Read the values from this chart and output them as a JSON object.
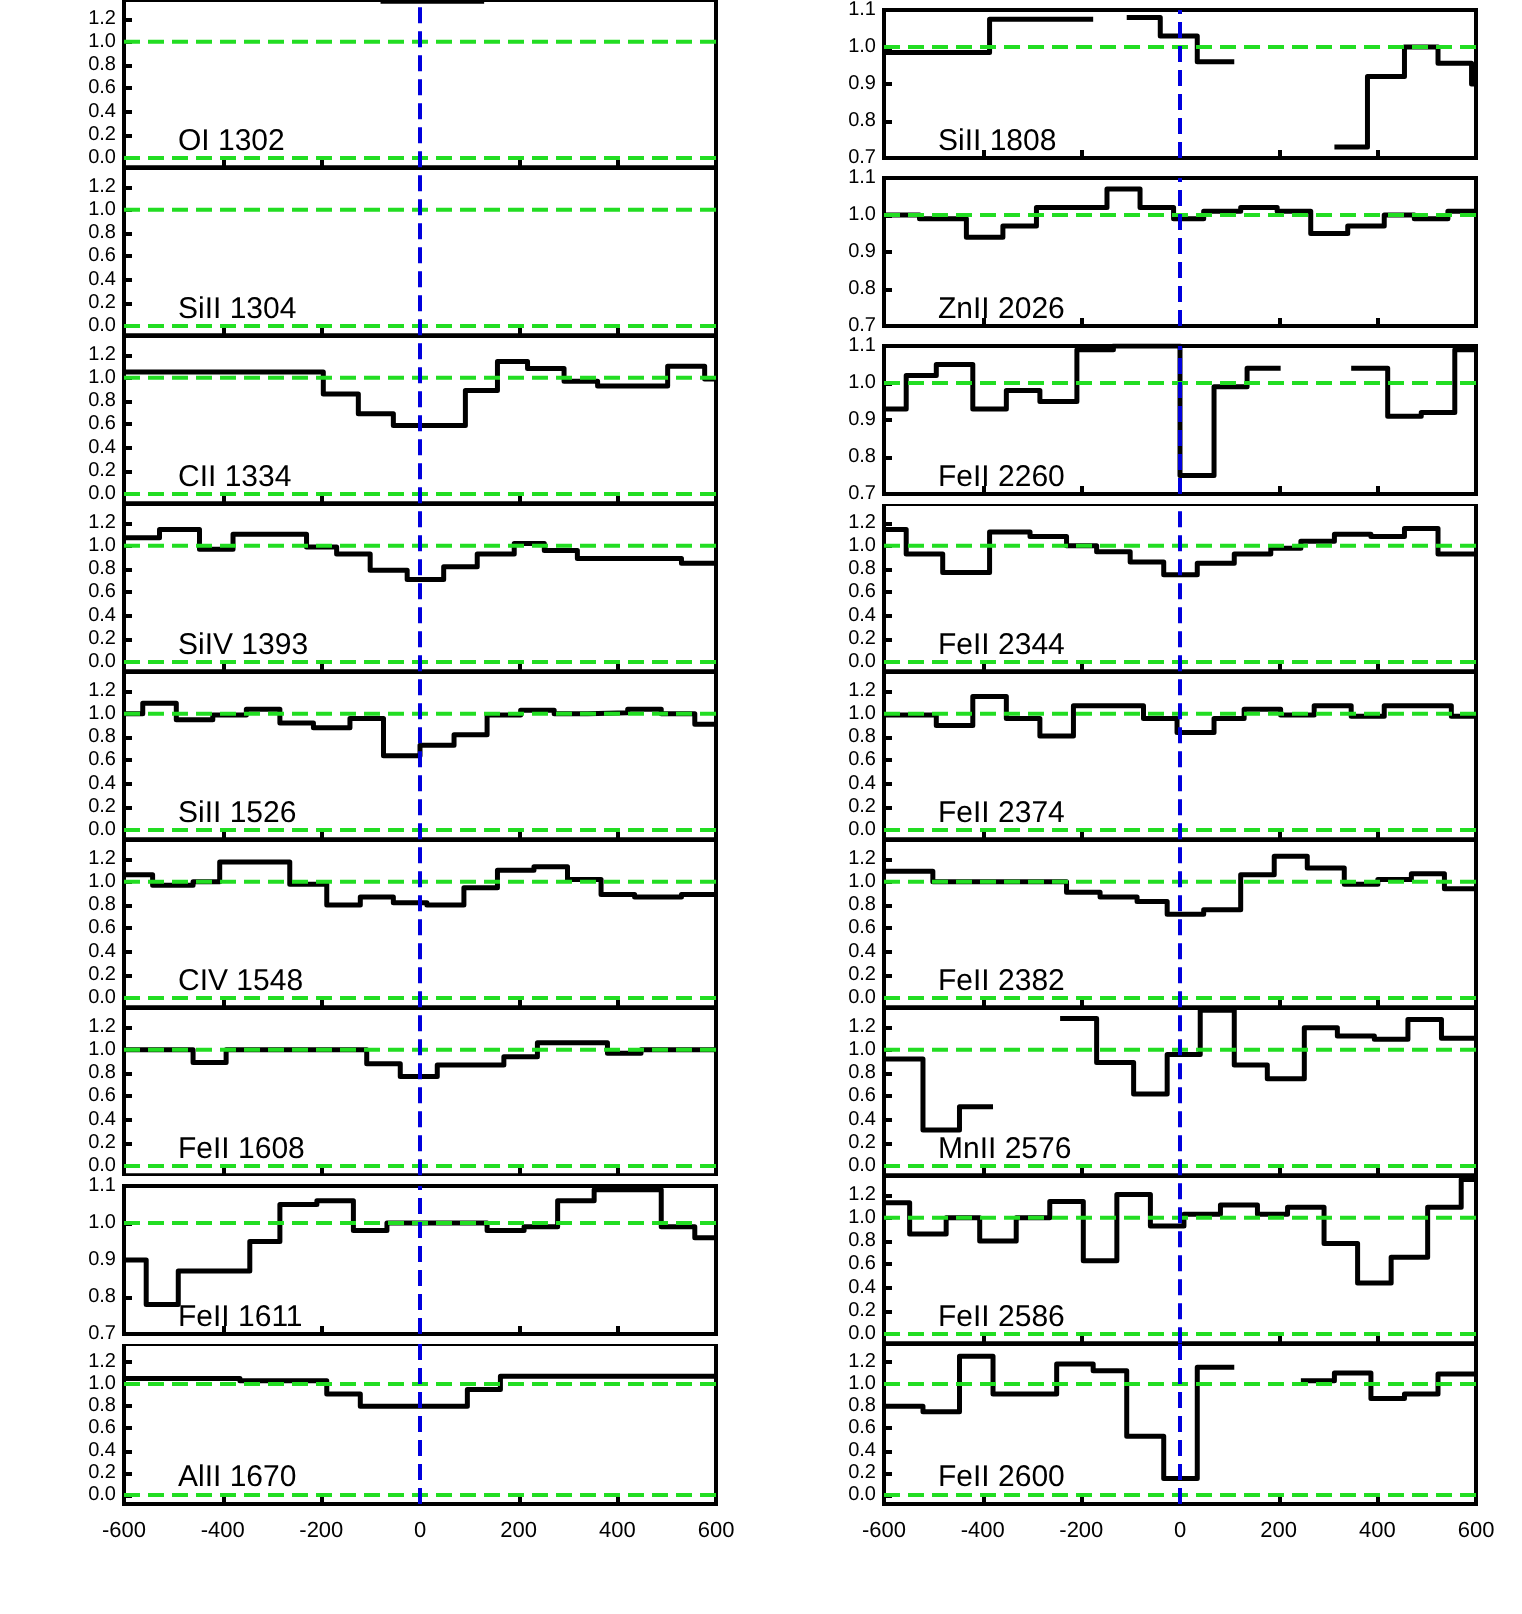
{
  "chart_data": [
    {
      "type": "step",
      "title": "OI 1302",
      "color": "#000000",
      "x": [
        -80,
        130
      ],
      "values": [
        1.35,
        1.35
      ],
      "xlim": [
        -600,
        600
      ],
      "ylim": [
        -0.08,
        1.36
      ],
      "xticks": [
        -600,
        -400,
        -200,
        0,
        200,
        400,
        600
      ],
      "yticks": [
        {
          "value": 0,
          "label": "0.0"
        },
        {
          "value": 0.2,
          "label": "0.2"
        },
        {
          "value": 0.4,
          "label": "0.4"
        },
        {
          "value": 0.6,
          "label": "0.6"
        },
        {
          "value": 0.8,
          "label": "0.8"
        },
        {
          "value": 1,
          "label": "1.0"
        },
        {
          "value": 1.2,
          "label": "1.2"
        }
      ],
      "tick_labels": "y",
      "ref_lines": [
        {
          "axis": "y",
          "value": 1,
          "color": "#22dd22",
          "line_style": "dashed"
        },
        {
          "axis": "y",
          "value": 0,
          "color": "#22dd22",
          "line_style": "dashed"
        },
        {
          "axis": "x",
          "value": 0,
          "color": "#0000dd",
          "line_style": "dashed"
        }
      ]
    },
    {
      "type": "step",
      "title": "SiII 1808",
      "color": "#000000",
      "x": [
        -600,
        -386,
        -176,
        -108,
        -40,
        35,
        110,
        313,
        380,
        455,
        523,
        591,
        600
      ],
      "values": [
        0.985,
        1.075,
        null,
        1.08,
        1.03,
        0.96,
        null,
        0.73,
        0.92,
        1.0,
        0.956,
        0.9,
        0.9
      ],
      "xlim": [
        -600,
        600
      ],
      "ylim": [
        0.7,
        1.1
      ],
      "xticks": [
        -600,
        -400,
        -200,
        0,
        200,
        400,
        600
      ],
      "yticks": [
        0.7,
        0.8,
        0.9,
        {
          "value": 1,
          "label": "1.0"
        },
        1.1
      ],
      "tick_labels": "y",
      "ref_lines": [
        {
          "axis": "y",
          "value": 1,
          "color": "#22dd22",
          "line_style": "dashed"
        },
        {
          "axis": "x",
          "value": 0,
          "color": "#0000dd",
          "line_style": "dashed"
        }
      ]
    },
    {
      "type": "step",
      "title": "SiII 1304",
      "color": "#000000",
      "xlim": [
        -600,
        600
      ],
      "ylim": [
        -0.08,
        1.36
      ],
      "xticks": [
        -600,
        -400,
        -200,
        0,
        200,
        400,
        600
      ],
      "yticks": [
        {
          "value": 0,
          "label": "0.0"
        },
        {
          "value": 0.2,
          "label": "0.2"
        },
        {
          "value": 0.4,
          "label": "0.4"
        },
        {
          "value": 0.6,
          "label": "0.6"
        },
        {
          "value": 0.8,
          "label": "0.8"
        },
        {
          "value": 1,
          "label": "1.0"
        },
        {
          "value": 1.2,
          "label": "1.2"
        }
      ],
      "tick_labels": "y",
      "ref_lines": [
        {
          "axis": "y",
          "value": 1,
          "color": "#22dd22",
          "line_style": "dashed"
        },
        {
          "axis": "y",
          "value": 0,
          "color": "#22dd22",
          "line_style": "dashed"
        },
        {
          "axis": "x",
          "value": 0,
          "color": "#0000dd",
          "line_style": "dashed"
        }
      ]
    },
    {
      "type": "step",
      "title": "ZnII 2026",
      "color": "#000000",
      "x": [
        -600,
        -528,
        -433,
        -359,
        -291,
        -148,
        -81,
        -13,
        48,
        123,
        197,
        265,
        340,
        414,
        475,
        543,
        600
      ],
      "values": [
        1.0,
        0.99,
        0.94,
        0.97,
        1.02,
        1.07,
        1.02,
        0.99,
        1.01,
        1.02,
        1.01,
        0.95,
        0.97,
        1.0,
        0.99,
        1.01,
        1.01
      ],
      "xlim": [
        -600,
        600
      ],
      "ylim": [
        0.7,
        1.1
      ],
      "xticks": [
        -600,
        -400,
        -200,
        0,
        200,
        400,
        600
      ],
      "yticks": [
        0.7,
        0.8,
        0.9,
        {
          "value": 1,
          "label": "1.0"
        },
        1.1
      ],
      "tick_labels": "y",
      "ref_lines": [
        {
          "axis": "y",
          "value": 1,
          "color": "#22dd22",
          "line_style": "dashed"
        },
        {
          "axis": "x",
          "value": 0,
          "color": "#0000dd",
          "line_style": "dashed"
        }
      ]
    },
    {
      "type": "step",
      "title": "CII 1334",
      "color": "#000000",
      "x": [
        -600,
        -196,
        -125,
        -54,
        92,
        157,
        218,
        292,
        360,
        502,
        577,
        600
      ],
      "values": [
        1.05,
        0.86,
        0.69,
        0.59,
        0.89,
        1.14,
        1.08,
        0.97,
        0.93,
        1.1,
        0.99,
        0.99
      ],
      "xlim": [
        -600,
        600
      ],
      "ylim": [
        -0.08,
        1.36
      ],
      "xticks": [
        -600,
        -400,
        -200,
        0,
        200,
        400,
        600
      ],
      "yticks": [
        {
          "value": 0,
          "label": "0.0"
        },
        {
          "value": 0.2,
          "label": "0.2"
        },
        {
          "value": 0.4,
          "label": "0.4"
        },
        {
          "value": 0.6,
          "label": "0.6"
        },
        {
          "value": 0.8,
          "label": "0.8"
        },
        {
          "value": 1,
          "label": "1.0"
        },
        {
          "value": 1.2,
          "label": "1.2"
        }
      ],
      "tick_labels": "y",
      "ref_lines": [
        {
          "axis": "y",
          "value": 1,
          "color": "#22dd22",
          "line_style": "dashed"
        },
        {
          "axis": "y",
          "value": 0,
          "color": "#22dd22",
          "line_style": "dashed"
        },
        {
          "axis": "x",
          "value": 0,
          "color": "#0000dd",
          "line_style": "dashed"
        }
      ]
    },
    {
      "type": "step",
      "title": "FeII 2260",
      "color": "#000000",
      "x": [
        -600,
        -555,
        -494,
        -420,
        -352,
        -284,
        -209,
        -135,
        0,
        69,
        136,
        204,
        347,
        421,
        489,
        557,
        600
      ],
      "values": [
        0.93,
        1.02,
        1.05,
        0.93,
        0.98,
        0.95,
        1.09,
        1.1,
        0.75,
        0.99,
        1.04,
        null,
        1.04,
        0.91,
        0.92,
        1.09,
        1.09
      ],
      "xlim": [
        -600,
        600
      ],
      "ylim": [
        0.7,
        1.1
      ],
      "xticks": [
        -600,
        -400,
        -200,
        0,
        200,
        400,
        600
      ],
      "yticks": [
        0.7,
        0.8,
        0.9,
        {
          "value": 1,
          "label": "1.0"
        },
        1.1
      ],
      "tick_labels": "y",
      "ref_lines": [
        {
          "axis": "y",
          "value": 1,
          "color": "#22dd22",
          "line_style": "dashed"
        },
        {
          "axis": "x",
          "value": 0,
          "color": "#0000dd",
          "line_style": "dashed"
        }
      ]
    },
    {
      "type": "step",
      "title": "SiIV 1393",
      "color": "#000000",
      "x": [
        -600,
        -528,
        -447,
        -379,
        -230,
        -169,
        -101,
        -26,
        48,
        116,
        191,
        252,
        319,
        530,
        600
      ],
      "values": [
        1.07,
        1.14,
        0.97,
        1.1,
        0.99,
        0.93,
        0.79,
        0.71,
        0.82,
        0.93,
        1.02,
        0.96,
        0.89,
        0.85,
        0.85
      ],
      "xlim": [
        -600,
        600
      ],
      "ylim": [
        -0.08,
        1.36
      ],
      "xticks": [
        -600,
        -400,
        -200,
        0,
        200,
        400,
        600
      ],
      "yticks": [
        {
          "value": 0,
          "label": "0.0"
        },
        {
          "value": 0.2,
          "label": "0.2"
        },
        {
          "value": 0.4,
          "label": "0.4"
        },
        {
          "value": 0.6,
          "label": "0.6"
        },
        {
          "value": 0.8,
          "label": "0.8"
        },
        {
          "value": 1,
          "label": "1.0"
        },
        {
          "value": 1.2,
          "label": "1.2"
        }
      ],
      "tick_labels": "y",
      "ref_lines": [
        {
          "axis": "y",
          "value": 1,
          "color": "#22dd22",
          "line_style": "dashed"
        },
        {
          "axis": "y",
          "value": 0,
          "color": "#22dd22",
          "line_style": "dashed"
        },
        {
          "axis": "x",
          "value": 0,
          "color": "#0000dd",
          "line_style": "dashed"
        }
      ]
    },
    {
      "type": "step",
      "title": "FeII 2344",
      "color": "#000000",
      "x": [
        -600,
        -555,
        -481,
        -386,
        -304,
        -230,
        -169,
        -101,
        -33,
        35,
        110,
        184,
        245,
        313,
        387,
        455,
        523,
        600
      ],
      "values": [
        1.14,
        0.93,
        0.77,
        1.12,
        1.08,
        1.0,
        0.95,
        0.86,
        0.75,
        0.85,
        0.93,
        0.98,
        1.04,
        1.1,
        1.08,
        1.15,
        0.93,
        0.93
      ],
      "xlim": [
        -600,
        600
      ],
      "ylim": [
        -0.08,
        1.36
      ],
      "xticks": [
        -600,
        -400,
        -200,
        0,
        200,
        400,
        600
      ],
      "yticks": [
        {
          "value": 0,
          "label": "0.0"
        },
        {
          "value": 0.2,
          "label": "0.2"
        },
        {
          "value": 0.4,
          "label": "0.4"
        },
        {
          "value": 0.6,
          "label": "0.6"
        },
        {
          "value": 0.8,
          "label": "0.8"
        },
        {
          "value": 1,
          "label": "1.0"
        },
        {
          "value": 1.2,
          "label": "1.2"
        }
      ],
      "tick_labels": "y",
      "ref_lines": [
        {
          "axis": "y",
          "value": 1,
          "color": "#22dd22",
          "line_style": "dashed"
        },
        {
          "axis": "y",
          "value": 0,
          "color": "#22dd22",
          "line_style": "dashed"
        },
        {
          "axis": "x",
          "value": 0,
          "color": "#0000dd",
          "line_style": "dashed"
        }
      ]
    },
    {
      "type": "step",
      "title": "SiII 1526",
      "color": "#000000",
      "x": [
        -600,
        -562,
        -494,
        -420,
        -352,
        -284,
        -216,
        -142,
        -74,
        0,
        69,
        136,
        204,
        272,
        340,
        421,
        489,
        557,
        600
      ],
      "values": [
        1.0,
        1.09,
        0.95,
        0.99,
        1.04,
        0.92,
        0.88,
        0.96,
        0.64,
        0.73,
        0.82,
        0.99,
        1.03,
        1.0,
        1.01,
        1.04,
        1.0,
        0.91,
        0.91
      ],
      "xlim": [
        -600,
        600
      ],
      "ylim": [
        -0.08,
        1.36
      ],
      "xticks": [
        -600,
        -400,
        -200,
        0,
        200,
        400,
        600
      ],
      "yticks": [
        {
          "value": 0,
          "label": "0.0"
        },
        {
          "value": 0.2,
          "label": "0.2"
        },
        {
          "value": 0.4,
          "label": "0.4"
        },
        {
          "value": 0.6,
          "label": "0.6"
        },
        {
          "value": 0.8,
          "label": "0.8"
        },
        {
          "value": 1,
          "label": "1.0"
        },
        {
          "value": 1.2,
          "label": "1.2"
        }
      ],
      "tick_labels": "y",
      "ref_lines": [
        {
          "axis": "y",
          "value": 1,
          "color": "#22dd22",
          "line_style": "dashed"
        },
        {
          "axis": "y",
          "value": 0,
          "color": "#22dd22",
          "line_style": "dashed"
        },
        {
          "axis": "x",
          "value": 0,
          "color": "#0000dd",
          "line_style": "dashed"
        }
      ]
    },
    {
      "type": "step",
      "title": "FeII 2374",
      "color": "#000000",
      "x": [
        -600,
        -494,
        -420,
        -352,
        -284,
        -216,
        -74,
        -6,
        69,
        130,
        204,
        272,
        347,
        414,
        550,
        600
      ],
      "values": [
        0.99,
        0.9,
        1.15,
        0.96,
        0.81,
        1.07,
        0.96,
        0.84,
        0.96,
        1.04,
        0.99,
        1.07,
        0.98,
        1.07,
        0.98,
        0.98
      ],
      "xlim": [
        -600,
        600
      ],
      "ylim": [
        -0.08,
        1.36
      ],
      "xticks": [
        -600,
        -400,
        -200,
        0,
        200,
        400,
        600
      ],
      "yticks": [
        {
          "value": 0,
          "label": "0.0"
        },
        {
          "value": 0.2,
          "label": "0.2"
        },
        {
          "value": 0.4,
          "label": "0.4"
        },
        {
          "value": 0.6,
          "label": "0.6"
        },
        {
          "value": 0.8,
          "label": "0.8"
        },
        {
          "value": 1,
          "label": "1.0"
        },
        {
          "value": 1.2,
          "label": "1.2"
        }
      ],
      "tick_labels": "y",
      "ref_lines": [
        {
          "axis": "y",
          "value": 1,
          "color": "#22dd22",
          "line_style": "dashed"
        },
        {
          "axis": "y",
          "value": 0,
          "color": "#22dd22",
          "line_style": "dashed"
        },
        {
          "axis": "x",
          "value": 0,
          "color": "#0000dd",
          "line_style": "dashed"
        }
      ]
    },
    {
      "type": "step",
      "title": "CIV 1548",
      "color": "#000000",
      "x": [
        -600,
        -542,
        -460,
        -406,
        -264,
        -189,
        -121,
        -54,
        14,
        89,
        157,
        231,
        299,
        367,
        435,
        530,
        600
      ],
      "values": [
        1.06,
        0.97,
        1.0,
        1.17,
        0.98,
        0.8,
        0.87,
        0.82,
        0.8,
        0.95,
        1.1,
        1.13,
        1.02,
        0.89,
        0.87,
        0.89,
        0.89
      ],
      "xlim": [
        -600,
        600
      ],
      "ylim": [
        -0.08,
        1.36
      ],
      "xticks": [
        -600,
        -400,
        -200,
        0,
        200,
        400,
        600
      ],
      "yticks": [
        {
          "value": 0,
          "label": "0.0"
        },
        {
          "value": 0.2,
          "label": "0.2"
        },
        {
          "value": 0.4,
          "label": "0.4"
        },
        {
          "value": 0.6,
          "label": "0.6"
        },
        {
          "value": 0.8,
          "label": "0.8"
        },
        {
          "value": 1,
          "label": "1.0"
        },
        {
          "value": 1.2,
          "label": "1.2"
        }
      ],
      "tick_labels": "y",
      "ref_lines": [
        {
          "axis": "y",
          "value": 1,
          "color": "#22dd22",
          "line_style": "dashed"
        },
        {
          "axis": "y",
          "value": 0,
          "color": "#22dd22",
          "line_style": "dashed"
        },
        {
          "axis": "x",
          "value": 0,
          "color": "#0000dd",
          "line_style": "dashed"
        }
      ]
    },
    {
      "type": "step",
      "title": "FeII 2382",
      "color": "#000000",
      "x": [
        -600,
        -501,
        -230,
        -162,
        -87,
        -26,
        48,
        123,
        191,
        258,
        333,
        401,
        469,
        536,
        600
      ],
      "values": [
        1.09,
        1.0,
        0.91,
        0.87,
        0.83,
        0.72,
        0.76,
        1.06,
        1.22,
        1.12,
        0.98,
        1.02,
        1.07,
        0.94,
        0.94
      ],
      "xlim": [
        -600,
        600
      ],
      "ylim": [
        -0.08,
        1.36
      ],
      "xticks": [
        -600,
        -400,
        -200,
        0,
        200,
        400,
        600
      ],
      "yticks": [
        {
          "value": 0,
          "label": "0.0"
        },
        {
          "value": 0.2,
          "label": "0.2"
        },
        {
          "value": 0.4,
          "label": "0.4"
        },
        {
          "value": 0.6,
          "label": "0.6"
        },
        {
          "value": 0.8,
          "label": "0.8"
        },
        {
          "value": 1,
          "label": "1.0"
        },
        {
          "value": 1.2,
          "label": "1.2"
        }
      ],
      "tick_labels": "y",
      "ref_lines": [
        {
          "axis": "y",
          "value": 1,
          "color": "#22dd22",
          "line_style": "dashed"
        },
        {
          "axis": "y",
          "value": 0,
          "color": "#22dd22",
          "line_style": "dashed"
        },
        {
          "axis": "x",
          "value": 0,
          "color": "#0000dd",
          "line_style": "dashed"
        }
      ]
    },
    {
      "type": "step",
      "title": "FeII 1608",
      "color": "#000000",
      "x": [
        -600,
        -460,
        -393,
        -108,
        -40,
        35,
        170,
        238,
        380,
        448,
        600
      ],
      "values": [
        1.0,
        0.89,
        1.0,
        0.88,
        0.77,
        0.87,
        0.94,
        1.06,
        0.97,
        1.0,
        1.0
      ],
      "xlim": [
        -600,
        600
      ],
      "ylim": [
        -0.08,
        1.36
      ],
      "xticks": [
        -600,
        -400,
        -200,
        0,
        200,
        400,
        600
      ],
      "yticks": [
        {
          "value": 0,
          "label": "0.0"
        },
        {
          "value": 0.2,
          "label": "0.2"
        },
        {
          "value": 0.4,
          "label": "0.4"
        },
        {
          "value": 0.6,
          "label": "0.6"
        },
        {
          "value": 0.8,
          "label": "0.8"
        },
        {
          "value": 1,
          "label": "1.0"
        },
        {
          "value": 1.2,
          "label": "1.2"
        }
      ],
      "tick_labels": "y",
      "ref_lines": [
        {
          "axis": "y",
          "value": 1,
          "color": "#22dd22",
          "line_style": "dashed"
        },
        {
          "axis": "y",
          "value": 0,
          "color": "#22dd22",
          "line_style": "dashed"
        },
        {
          "axis": "x",
          "value": 0,
          "color": "#0000dd",
          "line_style": "dashed"
        }
      ]
    },
    {
      "type": "step",
      "title": "MnII 2576",
      "color": "#000000",
      "x": [
        -600,
        -521,
        -447,
        -379,
        -243,
        -169,
        -94,
        -26,
        41,
        110,
        177,
        252,
        319,
        394,
        462,
        530,
        600
      ],
      "values": [
        0.92,
        0.31,
        0.51,
        null,
        1.27,
        0.89,
        0.62,
        0.96,
        1.34,
        0.87,
        0.75,
        1.19,
        1.12,
        1.09,
        1.26,
        1.1,
        1.1
      ],
      "xlim": [
        -600,
        600
      ],
      "ylim": [
        -0.08,
        1.36
      ],
      "xticks": [
        -600,
        -400,
        -200,
        0,
        200,
        400,
        600
      ],
      "yticks": [
        {
          "value": 0,
          "label": "0.0"
        },
        {
          "value": 0.2,
          "label": "0.2"
        },
        {
          "value": 0.4,
          "label": "0.4"
        },
        {
          "value": 0.6,
          "label": "0.6"
        },
        {
          "value": 0.8,
          "label": "0.8"
        },
        {
          "value": 1,
          "label": "1.0"
        },
        {
          "value": 1.2,
          "label": "1.2"
        }
      ],
      "tick_labels": "y",
      "ref_lines": [
        {
          "axis": "y",
          "value": 1,
          "color": "#22dd22",
          "line_style": "dashed"
        },
        {
          "axis": "y",
          "value": 0,
          "color": "#22dd22",
          "line_style": "dashed"
        },
        {
          "axis": "x",
          "value": 0,
          "color": "#0000dd",
          "line_style": "dashed"
        }
      ]
    },
    {
      "type": "step",
      "title": "FeII 1611",
      "color": "#000000",
      "x": [
        -600,
        -555,
        -490,
        -345,
        -284,
        -209,
        -135,
        -67,
        136,
        211,
        279,
        353,
        489,
        557,
        600
      ],
      "values": [
        0.9,
        0.78,
        0.87,
        0.95,
        1.05,
        1.06,
        0.98,
        1.0,
        0.98,
        0.99,
        1.06,
        1.09,
        0.99,
        0.96,
        0.96
      ],
      "xlim": [
        -600,
        600
      ],
      "ylim": [
        0.7,
        1.1
      ],
      "xticks": [
        -600,
        -400,
        -200,
        0,
        200,
        400,
        600
      ],
      "yticks": [
        0.7,
        0.8,
        0.9,
        {
          "value": 1,
          "label": "1.0"
        },
        1.1
      ],
      "tick_labels": "y",
      "ref_lines": [
        {
          "axis": "y",
          "value": 1,
          "color": "#22dd22",
          "line_style": "dashed"
        },
        {
          "axis": "x",
          "value": 0,
          "color": "#0000dd",
          "line_style": "dashed"
        }
      ]
    },
    {
      "type": "step",
      "title": "FeII 2586",
      "color": "#000000",
      "x": [
        -600,
        -548,
        -474,
        -406,
        -332,
        -264,
        -196,
        -128,
        -60,
        8,
        82,
        157,
        218,
        292,
        360,
        428,
        502,
        570,
        600
      ],
      "values": [
        1.13,
        0.86,
        1.0,
        0.8,
        1.0,
        1.14,
        0.63,
        1.2,
        0.93,
        1.03,
        1.11,
        1.03,
        1.09,
        0.78,
        0.44,
        0.66,
        1.09,
        1.33,
        1.33
      ],
      "xlim": [
        -600,
        600
      ],
      "ylim": [
        -0.08,
        1.36
      ],
      "xticks": [
        -600,
        -400,
        -200,
        0,
        200,
        400,
        600
      ],
      "yticks": [
        {
          "value": 0,
          "label": "0.0"
        },
        {
          "value": 0.2,
          "label": "0.2"
        },
        {
          "value": 0.4,
          "label": "0.4"
        },
        {
          "value": 0.6,
          "label": "0.6"
        },
        {
          "value": 0.8,
          "label": "0.8"
        },
        {
          "value": 1,
          "label": "1.0"
        },
        {
          "value": 1.2,
          "label": "1.2"
        }
      ],
      "tick_labels": "y",
      "ref_lines": [
        {
          "axis": "y",
          "value": 1,
          "color": "#22dd22",
          "line_style": "dashed"
        },
        {
          "axis": "y",
          "value": 0,
          "color": "#22dd22",
          "line_style": "dashed"
        },
        {
          "axis": "x",
          "value": 0,
          "color": "#0000dd",
          "line_style": "dashed"
        }
      ]
    },
    {
      "type": "step",
      "title": "AlII 1670",
      "color": "#000000",
      "x": [
        -600,
        -365,
        -189,
        -121,
        96,
        163,
        600
      ],
      "values": [
        1.05,
        1.03,
        0.91,
        0.8,
        0.95,
        1.07,
        1.07
      ],
      "xlim": [
        -600,
        600
      ],
      "ylim": [
        -0.08,
        1.36
      ],
      "xticks": [
        -600,
        -400,
        -200,
        0,
        200,
        400,
        600
      ],
      "yticks": [
        {
          "value": 0,
          "label": "0.0"
        },
        {
          "value": 0.2,
          "label": "0.2"
        },
        {
          "value": 0.4,
          "label": "0.4"
        },
        {
          "value": 0.6,
          "label": "0.6"
        },
        {
          "value": 0.8,
          "label": "0.8"
        },
        {
          "value": 1,
          "label": "1.0"
        },
        {
          "value": 1.2,
          "label": "1.2"
        }
      ],
      "ref_lines": [
        {
          "axis": "y",
          "value": 1,
          "color": "#22dd22",
          "line_style": "dashed"
        },
        {
          "axis": "y",
          "value": 0,
          "color": "#22dd22",
          "line_style": "dashed"
        },
        {
          "axis": "x",
          "value": 0,
          "color": "#0000dd",
          "line_style": "dashed"
        }
      ]
    },
    {
      "type": "step",
      "title": "FeII 2600",
      "color": "#000000",
      "x": [
        -600,
        -521,
        -447,
        -379,
        -250,
        -176,
        -108,
        -33,
        35,
        110,
        245,
        313,
        387,
        455,
        523,
        600
      ],
      "values": [
        0.8,
        0.75,
        1.25,
        0.91,
        1.18,
        1.12,
        0.53,
        0.15,
        1.15,
        null,
        1.03,
        1.1,
        0.87,
        0.91,
        1.09,
        1.09
      ],
      "xlim": [
        -600,
        600
      ],
      "ylim": [
        -0.08,
        1.36
      ],
      "xticks": [
        -600,
        -400,
        -200,
        0,
        200,
        400,
        600
      ],
      "yticks": [
        {
          "value": 0,
          "label": "0.0"
        },
        {
          "value": 0.2,
          "label": "0.2"
        },
        {
          "value": 0.4,
          "label": "0.4"
        },
        {
          "value": 0.6,
          "label": "0.6"
        },
        {
          "value": 0.8,
          "label": "0.8"
        },
        {
          "value": 1,
          "label": "1.0"
        },
        {
          "value": 1.2,
          "label": "1.2"
        }
      ],
      "ref_lines": [
        {
          "axis": "y",
          "value": 1,
          "color": "#22dd22",
          "line_style": "dashed"
        },
        {
          "axis": "y",
          "value": 0,
          "color": "#22dd22",
          "line_style": "dashed"
        },
        {
          "axis": "x",
          "value": 0,
          "color": "#0000dd",
          "line_style": "dashed"
        }
      ]
    }
  ]
}
